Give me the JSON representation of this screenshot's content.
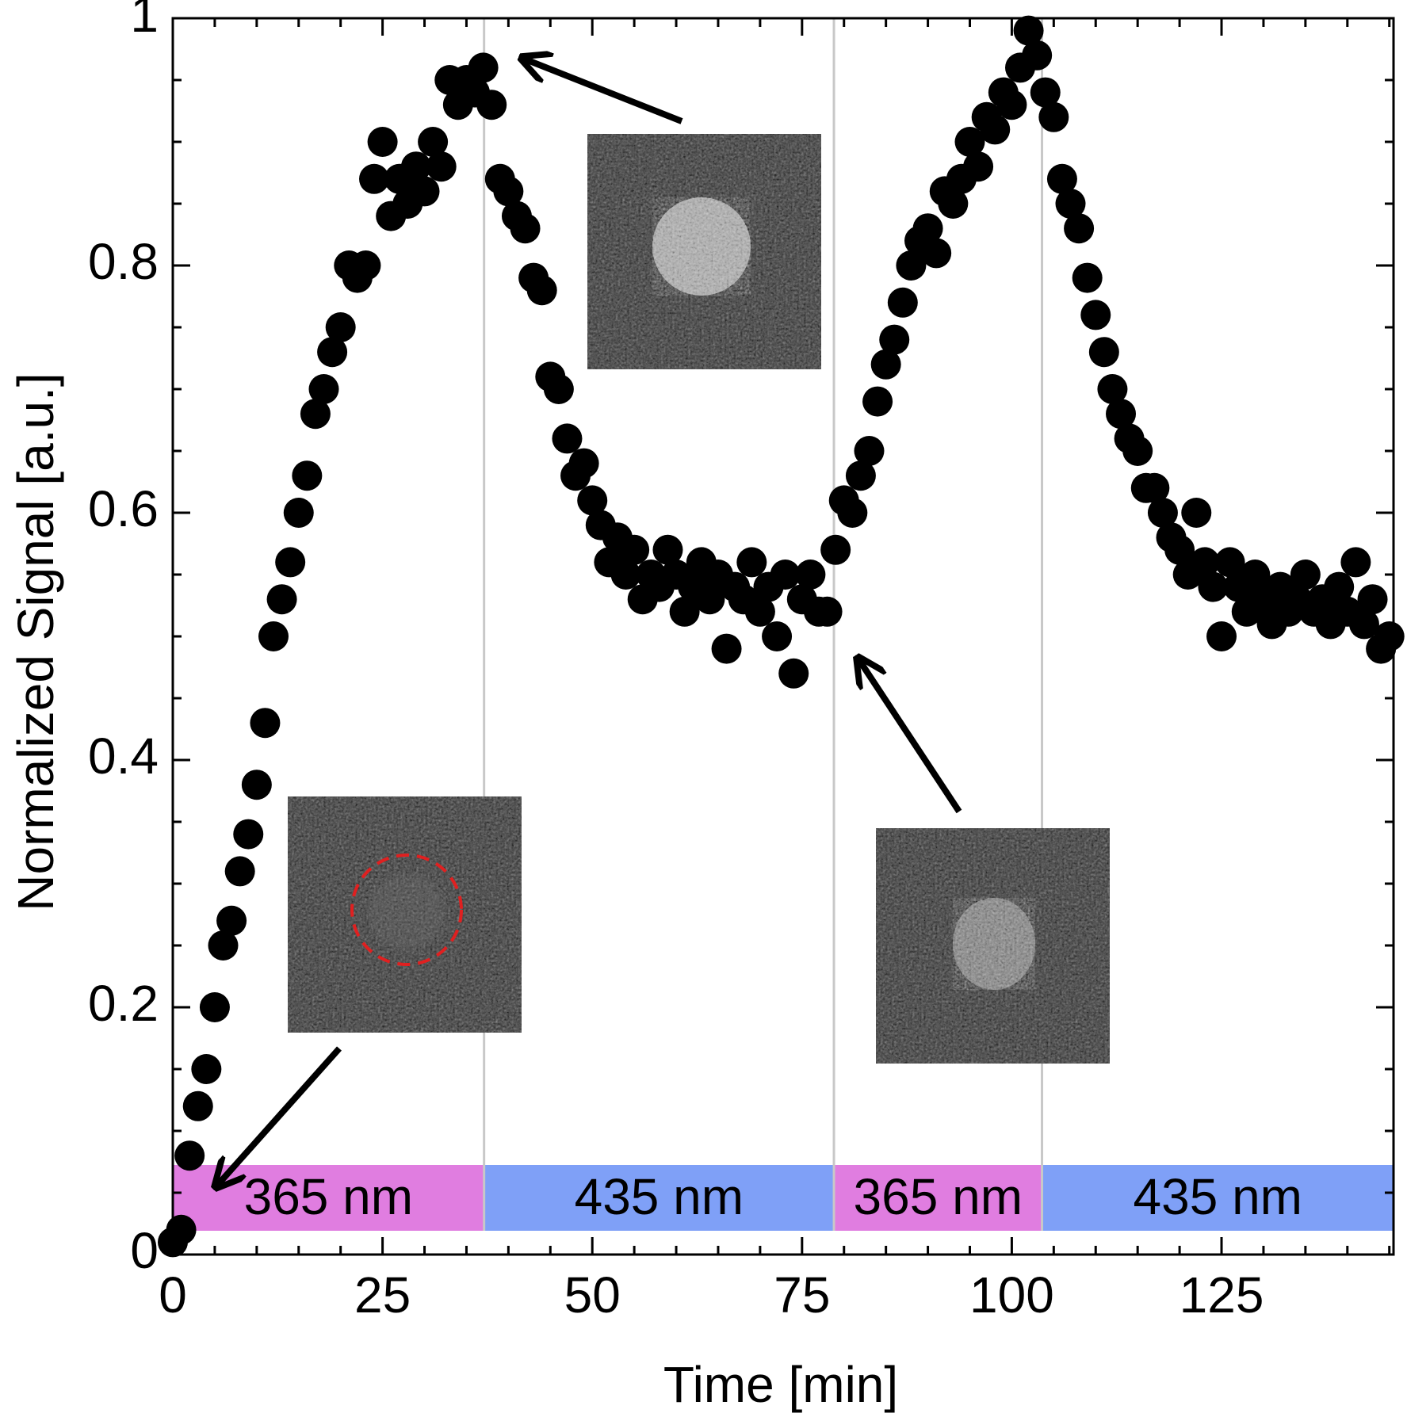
{
  "chart_data": {
    "type": "scatter",
    "xlabel": "Time [min]",
    "ylabel": "Normalized Signal [a.u.]",
    "xlim": [
      0,
      145.5
    ],
    "ylim": [
      0,
      1
    ],
    "xticks": [
      0,
      25,
      50,
      75,
      100,
      125
    ],
    "yticks": [
      0,
      0.2,
      0.4,
      0.6,
      0.8,
      1
    ],
    "xminorticks": [
      5,
      10,
      15,
      20,
      30,
      35,
      40,
      45,
      55,
      60,
      65,
      70,
      80,
      85,
      90,
      95,
      105,
      110,
      115,
      120,
      130,
      135,
      140,
      145
    ],
    "yminorticks": [
      0.05,
      0.1,
      0.15,
      0.25,
      0.3,
      0.35,
      0.45,
      0.5,
      0.55,
      0.65,
      0.7,
      0.75,
      0.85,
      0.9,
      0.95
    ],
    "vlines": [
      37.1,
      78.8,
      103.6
    ],
    "bands": [
      {
        "label": "365 nm",
        "start": 0,
        "end": 37.1,
        "color": "#e07de0"
      },
      {
        "label": "435 nm",
        "start": 37.1,
        "end": 78.8,
        "color": "#7fa0f7"
      },
      {
        "label": "365 nm",
        "start": 78.8,
        "end": 103.6,
        "color": "#e07de0"
      },
      {
        "label": "435 nm",
        "start": 103.6,
        "end": 145.5,
        "color": "#7fa0f7"
      }
    ],
    "color": "#000000",
    "x": [
      0,
      1,
      2,
      3,
      4,
      5,
      6,
      7,
      8,
      9,
      10,
      11,
      12,
      13,
      14,
      15,
      16,
      17,
      18,
      19,
      20,
      21,
      22,
      23,
      24,
      25,
      26,
      27,
      28,
      29,
      30,
      31,
      32,
      33,
      34,
      35,
      36,
      37,
      38,
      39,
      40,
      41,
      42,
      43,
      44,
      45,
      46,
      47,
      48,
      49,
      50,
      51,
      52,
      53,
      54,
      55,
      56,
      57,
      58,
      59,
      60,
      61,
      62,
      63,
      64,
      65,
      66,
      67,
      68,
      69,
      70,
      71,
      72,
      73,
      74,
      75,
      76,
      77,
      78,
      79,
      80,
      81,
      82,
      83,
      84,
      85,
      86,
      87,
      88,
      89,
      90,
      91,
      92,
      93,
      94,
      95,
      96,
      97,
      98,
      99,
      100,
      101,
      102,
      103,
      104,
      105,
      106,
      107,
      108,
      109,
      110,
      111,
      112,
      113,
      114,
      115,
      116,
      117,
      118,
      119,
      120,
      121,
      122,
      123,
      124,
      125,
      126,
      127,
      128,
      129,
      130,
      131,
      132,
      133,
      134,
      135,
      136,
      137,
      138,
      139,
      140,
      141,
      142,
      143,
      144,
      145
    ],
    "values": [
      0.01,
      0.02,
      0.08,
      0.12,
      0.15,
      0.2,
      0.25,
      0.27,
      0.31,
      0.34,
      0.38,
      0.43,
      0.5,
      0.53,
      0.56,
      0.6,
      0.63,
      0.68,
      0.7,
      0.73,
      0.75,
      0.8,
      0.79,
      0.8,
      0.87,
      0.9,
      0.84,
      0.87,
      0.85,
      0.88,
      0.86,
      0.9,
      0.88,
      0.95,
      0.93,
      0.95,
      0.94,
      0.96,
      0.93,
      0.87,
      0.86,
      0.84,
      0.83,
      0.79,
      0.78,
      0.71,
      0.7,
      0.66,
      0.63,
      0.64,
      0.61,
      0.59,
      0.56,
      0.58,
      0.55,
      0.57,
      0.53,
      0.55,
      0.54,
      0.57,
      0.55,
      0.52,
      0.54,
      0.56,
      0.53,
      0.55,
      0.49,
      0.54,
      0.53,
      0.56,
      0.52,
      0.54,
      0.5,
      0.55,
      0.47,
      0.53,
      0.55,
      0.52,
      0.52,
      0.57,
      0.61,
      0.6,
      0.63,
      0.65,
      0.69,
      0.72,
      0.74,
      0.77,
      0.8,
      0.82,
      0.83,
      0.81,
      0.86,
      0.85,
      0.87,
      0.9,
      0.88,
      0.92,
      0.91,
      0.94,
      0.93,
      0.96,
      0.99,
      0.97,
      0.94,
      0.92,
      0.87,
      0.85,
      0.83,
      0.79,
      0.76,
      0.73,
      0.7,
      0.68,
      0.66,
      0.65,
      0.62,
      0.62,
      0.6,
      0.58,
      0.57,
      0.55,
      0.6,
      0.56,
      0.54,
      0.5,
      0.56,
      0.54,
      0.52,
      0.55,
      0.53,
      0.51,
      0.54,
      0.52,
      0.53,
      0.55,
      0.52,
      0.53,
      0.51,
      0.54,
      0.52,
      0.56,
      0.51,
      0.53,
      0.49,
      0.5
    ]
  }
}
